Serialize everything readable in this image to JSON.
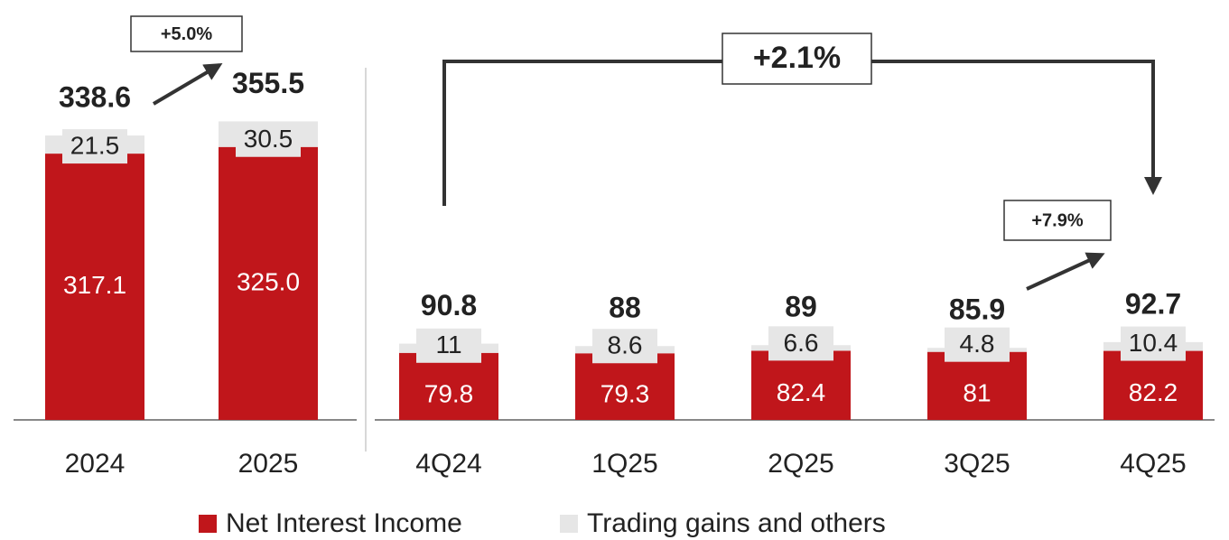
{
  "chart_data": [
    {
      "type": "bar",
      "stacked": true,
      "categories": [
        "2024",
        "2025"
      ],
      "series": [
        {
          "name": "Net Interest Income",
          "color": "#c0161b",
          "values": [
            317.1,
            325.0
          ],
          "value_labels": [
            "317.1",
            "325.0"
          ]
        },
        {
          "name": "Trading gains and others",
          "color": "#e6e6e6",
          "values": [
            21.5,
            30.5
          ]
        }
      ],
      "totals": [
        338.6,
        355.5
      ],
      "annotations": [
        "+5.0%"
      ]
    },
    {
      "type": "bar",
      "stacked": true,
      "categories": [
        "4Q24",
        "1Q25",
        "2Q25",
        "3Q25",
        "4Q25"
      ],
      "series": [
        {
          "color": "#c0161b",
          "values": [
            79.8,
            79.3,
            82.4,
            81.0,
            82.2
          ]
        },
        {
          "color": "#e6e6e6",
          "values": [
            11.0,
            8.6,
            6.6,
            4.8,
            10.4
          ]
        }
      ],
      "totals": [
        90.8,
        88.0,
        89.0,
        85.9,
        92.7
      ],
      "annotations": [
        "+2.1%",
        "+7.9%"
      ]
    }
  ]
}
